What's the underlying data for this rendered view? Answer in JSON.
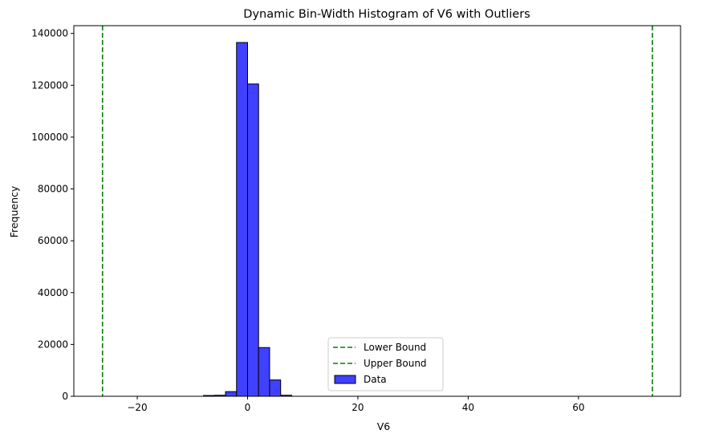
{
  "chart_data": {
    "type": "bar",
    "title": "Dynamic Bin-Width Histogram of V6 with Outliers",
    "xlabel": "V6",
    "ylabel": "Frequency",
    "xlim": [
      -31.5,
      78.5
    ],
    "ylim": [
      0,
      143000
    ],
    "xticks": [
      -20,
      0,
      20,
      40,
      60
    ],
    "yticks": [
      0,
      20000,
      40000,
      60000,
      80000,
      100000,
      120000,
      140000
    ],
    "bin_edges": [
      -8,
      -6,
      -4,
      -2,
      0,
      2,
      4,
      6,
      8
    ],
    "values": [
      300,
      400,
      1800,
      136500,
      120500,
      18800,
      6300,
      400
    ],
    "bar_color": "#4040ff",
    "bar_edge_color": "#000000",
    "lower_bound": -26.3,
    "upper bound_": null,
    "upper_bound": 73.4,
    "bound_color": "#008000",
    "legend": {
      "position": "lower center",
      "items": [
        {
          "label": "Lower Bound",
          "kind": "dashed-line",
          "color": "#008000"
        },
        {
          "label": "Upper Bound",
          "kind": "dashed-line",
          "color": "#008000"
        },
        {
          "label": "Data",
          "kind": "patch",
          "color": "#4040ff"
        }
      ]
    }
  }
}
